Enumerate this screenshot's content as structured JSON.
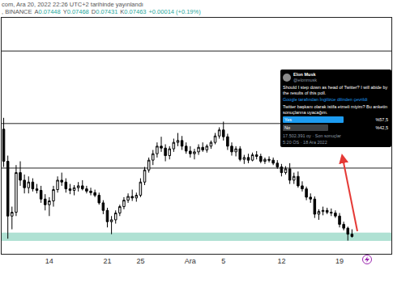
{
  "chart_data": {
    "type": "candlestick",
    "categories": [
      null,
      null,
      null,
      null,
      null,
      null,
      null,
      null,
      null,
      null,
      null,
      "14",
      null,
      null,
      null,
      null,
      null,
      null,
      null,
      null,
      null,
      null,
      null,
      null,
      null,
      "21",
      null,
      null,
      null,
      null,
      null,
      null,
      null,
      "25",
      null,
      null,
      null,
      null,
      null,
      null,
      null,
      null,
      null,
      null,
      null,
      "Ara",
      null,
      null,
      null,
      null,
      null,
      null,
      null,
      "5",
      null,
      null,
      null,
      null,
      null,
      null,
      null,
      null,
      null,
      null,
      null,
      null,
      null,
      "12",
      null,
      null,
      null,
      null,
      null,
      null,
      null,
      null,
      null,
      null,
      null,
      null,
      null,
      "19",
      null,
      null,
      null,
      null,
      null,
      null,
      null,
      null,
      null,
      null,
      null,
      null
    ],
    "open": [
      0.103,
      0.0945,
      0.08,
      0.081,
      0.0915,
      0.0895,
      0.0875,
      0.089,
      0.0872,
      0.0868,
      0.0845,
      0.083,
      0.084,
      0.087,
      0.0895,
      0.089,
      0.0872,
      0.0868,
      0.0875,
      0.088,
      0.0872,
      0.0866,
      0.0862,
      0.0855,
      0.0835,
      0.0815,
      0.0785,
      0.079,
      0.0808,
      0.0825,
      0.0842,
      0.0852,
      0.0848,
      0.0855,
      0.089,
      0.0922,
      0.0948,
      0.0965,
      0.0985,
      0.098,
      0.096,
      0.0978,
      0.0995,
      0.1,
      0.0985,
      0.0972,
      0.0965,
      0.097,
      0.0982,
      0.0975,
      0.0985,
      0.0995,
      0.1012,
      0.1028,
      0.101,
      0.0985,
      0.097,
      0.0978,
      0.095,
      0.0955,
      0.0948,
      0.0962,
      0.0958,
      0.0945,
      0.095,
      0.0948,
      0.094,
      0.093,
      0.0915,
      0.0925,
      0.0895,
      0.0905,
      0.088,
      0.0872,
      0.085,
      0.0845,
      0.0805,
      0.0812,
      0.0815,
      0.081,
      0.0808,
      0.08,
      0.0778,
      0.0768,
      0.0752,
      null,
      null,
      null,
      null,
      null,
      null,
      null,
      null,
      null
    ],
    "high": [
      0.106,
      0.096,
      0.0825,
      0.0935,
      0.0945,
      0.091,
      0.0905,
      0.09,
      0.0885,
      0.088,
      0.0858,
      0.085,
      0.088,
      0.0905,
      0.0915,
      0.09,
      0.0885,
      0.0882,
      0.089,
      0.0895,
      0.088,
      0.0875,
      0.087,
      0.0862,
      0.0842,
      0.0822,
      0.08,
      0.0815,
      0.083,
      0.085,
      0.086,
      0.087,
      0.0862,
      0.09,
      0.093,
      0.0955,
      0.0975,
      0.0995,
      0.101,
      0.099,
      0.0985,
      0.1005,
      0.102,
      0.1012,
      0.0995,
      0.0985,
      0.0978,
      0.099,
      0.0995,
      0.099,
      0.1,
      0.102,
      0.1035,
      0.105,
      0.1018,
      0.0995,
      0.0985,
      0.0985,
      0.0962,
      0.0965,
      0.0968,
      0.0972,
      0.0965,
      0.0955,
      0.0958,
      0.0955,
      0.0948,
      0.0938,
      0.0932,
      0.094,
      0.0915,
      0.0918,
      0.0892,
      0.0878,
      0.086,
      0.0852,
      0.0818,
      0.0825,
      0.0822,
      0.082,
      0.0815,
      0.0808,
      0.0785,
      0.0772,
      0.0765,
      null,
      null,
      null,
      null,
      null,
      null,
      null,
      null,
      null
    ],
    "low": [
      0.093,
      0.074,
      0.0765,
      0.08,
      0.088,
      0.086,
      0.086,
      0.0865,
      0.086,
      0.0835,
      0.0815,
      0.08,
      0.0825,
      0.0862,
      0.088,
      0.0862,
      0.0858,
      0.0855,
      0.0865,
      0.0868,
      0.086,
      0.0855,
      0.085,
      0.083,
      0.0805,
      0.077,
      0.0752,
      0.078,
      0.08,
      0.0818,
      0.0835,
      0.084,
      0.0838,
      0.085,
      0.0882,
      0.0915,
      0.0935,
      0.0955,
      0.097,
      0.0945,
      0.095,
      0.097,
      0.0985,
      0.0975,
      0.0965,
      0.0955,
      0.095,
      0.0962,
      0.097,
      0.0968,
      0.0978,
      0.099,
      0.1005,
      0.1,
      0.0975,
      0.096,
      0.0958,
      0.0945,
      0.0938,
      0.094,
      0.0945,
      0.095,
      0.094,
      0.0938,
      0.0942,
      0.0935,
      0.0925,
      0.0905,
      0.091,
      0.0885,
      0.0885,
      0.0875,
      0.0865,
      0.0842,
      0.0835,
      0.0795,
      0.079,
      0.0802,
      0.0805,
      0.08,
      0.0795,
      0.077,
      0.0762,
      0.0735,
      0.0743,
      null,
      null,
      null,
      null,
      null,
      null,
      null,
      null,
      null
    ],
    "close": [
      0.0945,
      0.08,
      0.081,
      0.0915,
      0.0895,
      0.0875,
      0.089,
      0.0872,
      0.0868,
      0.0845,
      0.083,
      0.084,
      0.087,
      0.0895,
      0.089,
      0.0872,
      0.0868,
      0.0875,
      0.088,
      0.0872,
      0.0866,
      0.0862,
      0.0855,
      0.0835,
      0.0815,
      0.0785,
      0.079,
      0.0808,
      0.0825,
      0.0842,
      0.0852,
      0.0848,
      0.0855,
      0.089,
      0.0922,
      0.0948,
      0.0965,
      0.0985,
      0.098,
      0.096,
      0.0978,
      0.0995,
      0.1,
      0.0985,
      0.0972,
      0.0965,
      0.097,
      0.0982,
      0.0975,
      0.0985,
      0.0995,
      0.1012,
      0.1028,
      0.101,
      0.0985,
      0.097,
      0.0978,
      0.095,
      0.0955,
      0.0948,
      0.0962,
      0.0958,
      0.0945,
      0.095,
      0.0948,
      0.094,
      0.093,
      0.0915,
      0.0925,
      0.0895,
      0.0905,
      0.088,
      0.0872,
      0.085,
      0.0845,
      0.0805,
      0.0812,
      0.0815,
      0.081,
      0.0808,
      0.08,
      0.0778,
      0.0768,
      0.0752,
      0.0746,
      null,
      null,
      null,
      null,
      null,
      null,
      null,
      null,
      null
    ],
    "color": "#000000",
    "ylim": [
      0.07,
      0.1325
    ],
    "levels": [
      0.1237,
      0.1045,
      0.0927
    ],
    "zone": [
      0.0734,
      0.0756
    ],
    "grid": false,
    "tick_labels": "x"
  },
  "header": {
    "published": "com, Ara 20, 2022 22:26 UTC+2 tarihinde yayınlandı",
    "symbol": ", BINANCE",
    "ohlc": [
      {
        "label": "A",
        "value": 0.07448
      },
      {
        "label": "Y",
        "value": 0.07468
      },
      {
        "label": "D",
        "value": 0.07431
      },
      {
        "label": "K",
        "value": 0.07463
      }
    ],
    "change": "+0.00014 (+0.19%)"
  },
  "tweet": {
    "name": "Elon Musk",
    "handle": "@elonmusk",
    "text": "Should I step down as head of Twitter? I will abide by the results of this poll.",
    "translated_by": "Google tarafından İngilizce dilinden çevrildi",
    "translation": "Twitter başkanı olarak istifa etmeli miyim? Bu anketin sonuçlarına uyacağım.",
    "poll": [
      {
        "label": "Yes",
        "value": 57.5,
        "value_label": "%57,5",
        "color": "#1d9bf0"
      },
      {
        "label": "No",
        "value": 42.5,
        "value_label": "%42,5",
        "color": "#3e4144"
      }
    ],
    "votes": "17.502.391 oy · Son sonuçlar",
    "time": "5:20 ÖS · 18 Ara 2022"
  }
}
